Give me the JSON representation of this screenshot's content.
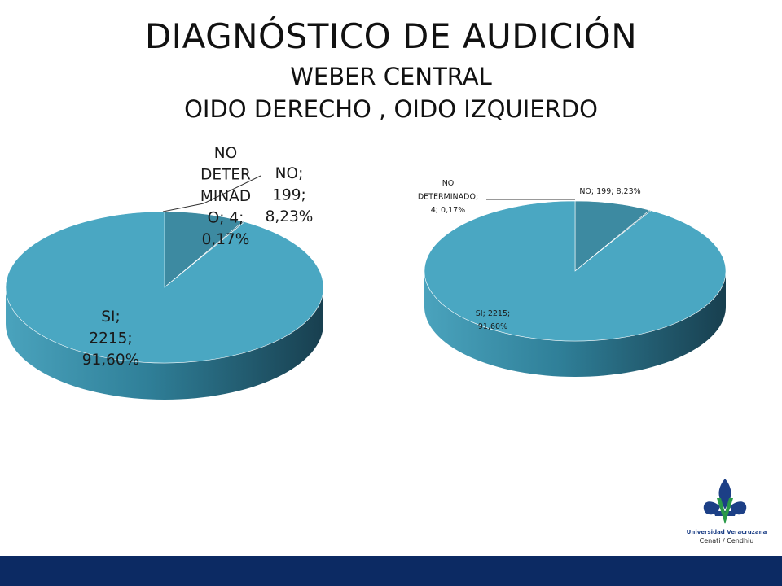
{
  "header": {
    "title": "DIAGNÓSTICO DE AUDICIÓN",
    "subtitle_line1": "WEBER CENTRAL",
    "subtitle_line2": "OIDO DERECHO , OIDO IZQUIERDO"
  },
  "colors": {
    "si": "#4aa7c2",
    "no": "#3d8aa1",
    "no_determinado": "#2f7288",
    "footer": "#0c2a63"
  },
  "chart_data": [
    {
      "type": "pie",
      "style": "3d",
      "slices": [
        {
          "label": "SI",
          "value": 2215,
          "percent": "91,60%"
        },
        {
          "label": "NO",
          "value": 199,
          "percent": "8,23%"
        },
        {
          "label": "NO DETERMINADO",
          "value": 4,
          "percent": "0,17%"
        }
      ],
      "labels": {
        "si": [
          "SI;",
          "2215;",
          "91,60%"
        ],
        "no": [
          "NO;",
          "199;",
          "8,23%"
        ],
        "nd": [
          "NO",
          "DETER",
          "MINAD",
          "O; 4;",
          "0,17%"
        ]
      }
    },
    {
      "type": "pie",
      "style": "3d",
      "slices": [
        {
          "label": "SI",
          "value": 2215,
          "percent": "91,60%"
        },
        {
          "label": "NO",
          "value": 199,
          "percent": "8,23%"
        },
        {
          "label": "NO DETERMINADO",
          "value": 4,
          "percent": "0,17%"
        }
      ],
      "labels": {
        "si": [
          "SI; 2215;",
          "91,60%"
        ],
        "no": [
          "NO; 199; 8,23%"
        ],
        "nd": [
          "NO",
          "DETERMINADO;",
          "4; 0,17%"
        ]
      }
    }
  ],
  "logo": {
    "name": "Universidad Veracruzana",
    "subtitle": "Cenati / Cendhiu"
  }
}
